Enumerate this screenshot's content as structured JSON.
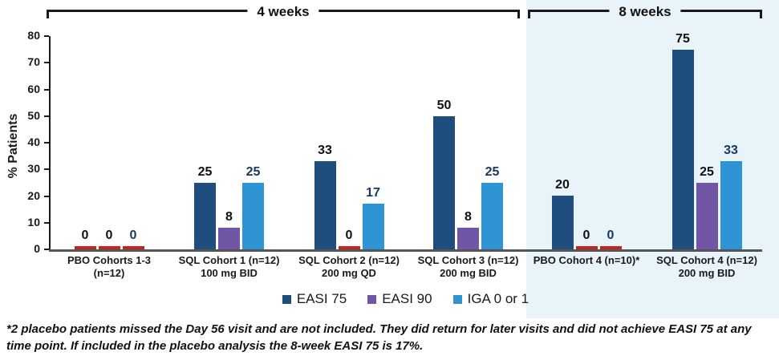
{
  "colors": {
    "easi75": "#1f4e7e",
    "easi90": "#7056a4",
    "iga": "#2f94d4",
    "zero_bar": "#c1251c",
    "panel_8weeks_bg": "#e8f3fa",
    "axis": "#1a1a1a",
    "baseline": "#555555",
    "value_label_default": "#111111",
    "value_label_iga": "#17375e"
  },
  "brackets": {
    "four_weeks_label": "4 weeks",
    "eight_weeks_label": "8 weeks"
  },
  "chart_data": {
    "type": "bar",
    "title": "",
    "xlabel": "",
    "ylabel": "% Patients",
    "ylim": [
      0,
      80
    ],
    "yticks": [
      0,
      10,
      20,
      30,
      40,
      50,
      60,
      70,
      80
    ],
    "grid": false,
    "legend_position": "bottom",
    "series_names": [
      "EASI 75",
      "EASI 90",
      "IGA 0 or 1"
    ],
    "series_colors": [
      "#1f4e7e",
      "#7056a4",
      "#2f94d4"
    ],
    "value_label_colors": [
      "#111111",
      "#111111",
      "#17375e"
    ],
    "zero_shown_as_red_stub": true,
    "groups": [
      {
        "label_line1": "PBO Cohorts 1-3",
        "label_line2": "(n=12)",
        "section": "4 weeks",
        "values": [
          0,
          0,
          0
        ]
      },
      {
        "label_line1": "SQL Cohort 1 (n=12)",
        "label_line2": "100 mg BID",
        "section": "4 weeks",
        "values": [
          25,
          8,
          25
        ]
      },
      {
        "label_line1": "SQL Cohort 2 (n=12)",
        "label_line2": "200 mg QD",
        "section": "4 weeks",
        "values": [
          33,
          0,
          17
        ]
      },
      {
        "label_line1": "SQL Cohort 3 (n=12)",
        "label_line2": "200 mg BID",
        "section": "4 weeks",
        "values": [
          50,
          8,
          25
        ]
      },
      {
        "label_line1": "PBO Cohort 4 (n=10)*",
        "label_line2": "",
        "section": "8 weeks",
        "values": [
          20,
          0,
          0
        ]
      },
      {
        "label_line1": "SQL Cohort 4 (n=12)",
        "label_line2": "200 mg BID",
        "section": "8 weeks",
        "values": [
          75,
          25,
          33
        ]
      }
    ]
  },
  "legend": {
    "items": [
      {
        "label": "EASI 75",
        "color": "#1f4e7e"
      },
      {
        "label": "EASI 90",
        "color": "#7056a4"
      },
      {
        "label": "IGA 0 or 1",
        "color": "#2f94d4"
      }
    ]
  },
  "footnote": "*2 placebo patients missed the Day 56 visit and are not included. They did return for later visits and did not achieve EASI 75 at any time point. If included in the placebo analysis the 8-week EASI 75 is 17%."
}
